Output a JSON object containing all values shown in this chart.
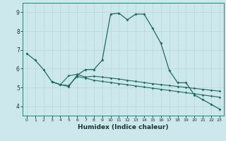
{
  "xlabel": "Humidex (Indice chaleur)",
  "background_color": "#cce8ec",
  "line_color": "#1e6b5e",
  "grid_color": "#b8d8dc",
  "xlim": [
    -0.5,
    23.5
  ],
  "ylim": [
    3.5,
    9.5
  ],
  "yticks": [
    4,
    5,
    6,
    7,
    8,
    9
  ],
  "xticks": [
    0,
    1,
    2,
    3,
    4,
    5,
    6,
    7,
    8,
    9,
    10,
    11,
    12,
    13,
    14,
    15,
    16,
    17,
    18,
    19,
    20,
    21,
    22,
    23
  ],
  "series1_x": [
    0,
    1,
    2,
    3,
    4,
    5,
    6,
    7,
    8,
    9,
    10,
    11,
    12,
    13,
    14,
    15,
    16,
    17,
    18,
    19,
    20,
    21,
    22,
    23
  ],
  "series1_y": [
    6.8,
    6.45,
    5.95,
    5.3,
    5.15,
    5.05,
    5.65,
    5.95,
    5.95,
    6.45,
    8.9,
    8.95,
    8.6,
    8.9,
    8.9,
    8.15,
    7.35,
    5.9,
    5.25,
    5.25,
    4.6,
    4.35,
    4.1,
    3.85
  ],
  "series2_x": [
    3,
    4,
    5,
    6,
    7,
    8,
    9,
    10,
    11,
    12,
    13,
    14,
    15,
    16,
    17,
    18,
    19,
    20,
    21,
    22,
    23
  ],
  "series2_y": [
    5.3,
    5.15,
    5.62,
    5.7,
    5.55,
    5.6,
    5.55,
    5.5,
    5.45,
    5.38,
    5.32,
    5.26,
    5.2,
    5.15,
    5.1,
    5.05,
    5.0,
    4.95,
    4.9,
    4.85,
    4.8
  ],
  "series3_x": [
    3,
    4,
    5,
    6,
    7,
    8,
    9,
    10,
    11,
    12,
    13,
    14,
    15,
    16,
    17,
    18,
    19,
    20,
    21,
    22,
    23
  ],
  "series3_y": [
    5.3,
    5.15,
    5.1,
    5.58,
    5.5,
    5.38,
    5.32,
    5.26,
    5.2,
    5.14,
    5.08,
    5.02,
    4.96,
    4.9,
    4.84,
    4.78,
    4.72,
    4.66,
    4.6,
    4.54,
    4.48
  ]
}
